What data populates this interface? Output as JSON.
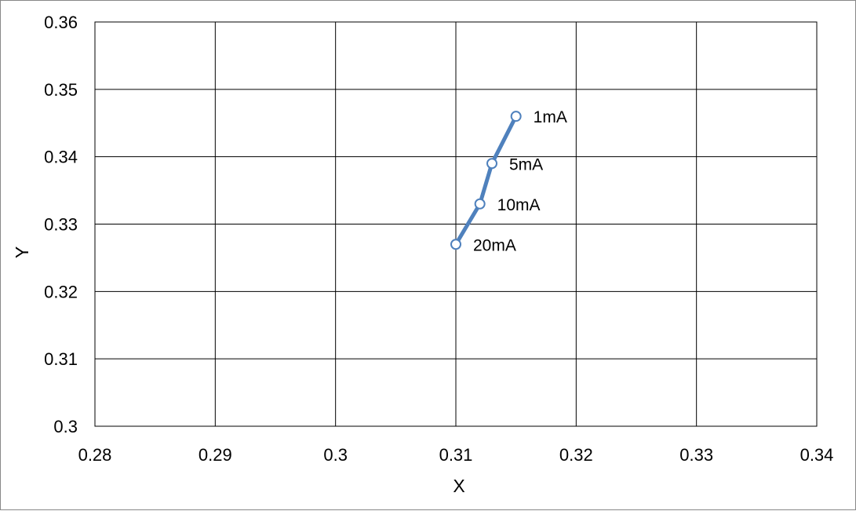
{
  "chart_data": {
    "type": "scatter",
    "title": "",
    "xlabel": "X",
    "ylabel": "Y",
    "xlim": [
      0.28,
      0.34
    ],
    "ylim": [
      0.3,
      0.36
    ],
    "grid": true,
    "legend": "none",
    "x_ticks": [
      "0.28",
      "0.29",
      "0.3",
      "0.31",
      "0.32",
      "0.33",
      "0.34"
    ],
    "y_ticks": [
      "0.3",
      "0.31",
      "0.32",
      "0.33",
      "0.34",
      "0.35",
      "0.36"
    ],
    "series": [
      {
        "color": "#4f81bd",
        "marker": "open-circle",
        "connected": true,
        "points": [
          {
            "x": 0.315,
            "y": 0.346,
            "label": "1mA"
          },
          {
            "x": 0.313,
            "y": 0.339,
            "label": "5mA"
          },
          {
            "x": 0.312,
            "y": 0.333,
            "label": "10mA"
          },
          {
            "x": 0.31,
            "y": 0.327,
            "label": "20mA"
          }
        ]
      }
    ]
  }
}
